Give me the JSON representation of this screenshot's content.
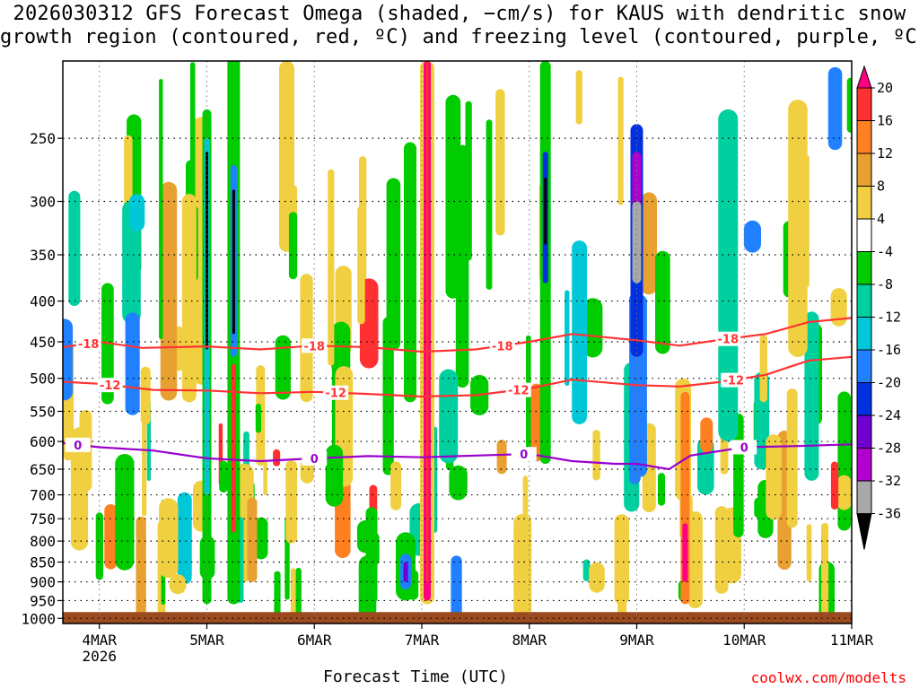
{
  "title_line1": "2026030312 GFS Forecast Omega (shaded, −cm/s) for KAUS with dendritic snow",
  "title_line2": "growth region (contoured, red, ºC) and freezing level (contoured, purple, ºC)",
  "x_axis_label": "Forecast Time (UTC)",
  "credit": "coolwx.com/modelts",
  "colors": {
    "red_contour": "#ff3333",
    "purple_contour": "#9900cc",
    "ground": "#9a4a1e",
    "grid": "#000000"
  },
  "chart_data": {
    "type": "heatmap",
    "x_ticks": [
      {
        "label": "4MAR",
        "sublabel": "2026",
        "day": 1
      },
      {
        "label": "5MAR",
        "day": 2
      },
      {
        "label": "6MAR",
        "day": 3
      },
      {
        "label": "7MAR",
        "day": 4
      },
      {
        "label": "8MAR",
        "day": 5
      },
      {
        "label": "9MAR",
        "day": 6
      },
      {
        "label": "10MAR",
        "day": 7
      },
      {
        "label": "11MAR",
        "day": 8
      }
    ],
    "x_range_days": [
      0.66,
      8.0
    ],
    "y_levels": [
      250,
      300,
      350,
      400,
      450,
      500,
      550,
      600,
      650,
      700,
      750,
      800,
      850,
      900,
      950,
      1000
    ],
    "y_range_hpa": [
      200,
      1015
    ],
    "colorbar_labels": [
      "20",
      "16",
      "12",
      "8",
      "4",
      "-4",
      "-8",
      "-12",
      "-16",
      "-20",
      "-24",
      "-28",
      "-32",
      "-36"
    ],
    "colorbar_colors": [
      "#ff0080",
      "#ff3030",
      "#ff8020",
      "#e8a030",
      "#f0d040",
      "#ffffff",
      "#00cc00",
      "#00d0a0",
      "#00c8d8",
      "#2080ff",
      "#0030e0",
      "#7000d0",
      "#b000d0",
      "#a8a8a8",
      "#000000"
    ],
    "contours": [
      {
        "label": "-18",
        "color": "#ff3333",
        "points": [
          [
            0.66,
            457
          ],
          [
            1.0,
            450
          ],
          [
            1.4,
            458
          ],
          [
            2.0,
            456
          ],
          [
            2.5,
            460
          ],
          [
            3.0,
            455
          ],
          [
            3.5,
            457
          ],
          [
            4.0,
            463
          ],
          [
            4.5,
            460
          ],
          [
            5.0,
            450
          ],
          [
            5.4,
            440
          ],
          [
            6.0,
            448
          ],
          [
            6.4,
            455
          ],
          [
            6.8,
            447
          ],
          [
            7.2,
            440
          ],
          [
            7.6,
            425
          ],
          [
            8.0,
            420
          ]
        ],
        "label_positions": [
          0.9,
          3.0,
          4.75,
          6.85
        ]
      },
      {
        "label": "-12",
        "color": "#ff3333",
        "points": [
          [
            0.66,
            505
          ],
          [
            1.0,
            508
          ],
          [
            1.5,
            517
          ],
          [
            2.0,
            518
          ],
          [
            2.5,
            522
          ],
          [
            3.0,
            520
          ],
          [
            3.5,
            523
          ],
          [
            4.0,
            527
          ],
          [
            4.5,
            525
          ],
          [
            5.0,
            515
          ],
          [
            5.4,
            502
          ],
          [
            6.0,
            510
          ],
          [
            6.4,
            512
          ],
          [
            6.8,
            505
          ],
          [
            7.2,
            495
          ],
          [
            7.6,
            475
          ],
          [
            8.0,
            470
          ]
        ],
        "label_positions": [
          1.1,
          3.2,
          4.9,
          6.9
        ]
      },
      {
        "label": "0",
        "color": "#9900cc",
        "points": [
          [
            0.66,
            603
          ],
          [
            1.0,
            610
          ],
          [
            1.5,
            616
          ],
          [
            2.0,
            630
          ],
          [
            2.5,
            635
          ],
          [
            3.0,
            630
          ],
          [
            3.5,
            626
          ],
          [
            4.0,
            628
          ],
          [
            4.5,
            625
          ],
          [
            5.0,
            622
          ],
          [
            5.4,
            635
          ],
          [
            5.8,
            640
          ],
          [
            6.0,
            640
          ],
          [
            6.3,
            650
          ],
          [
            6.5,
            625
          ],
          [
            7.0,
            610
          ],
          [
            7.5,
            608
          ],
          [
            8.0,
            605
          ]
        ],
        "label_positions": [
          0.8,
          3.0,
          4.95,
          7.0
        ]
      }
    ]
  }
}
